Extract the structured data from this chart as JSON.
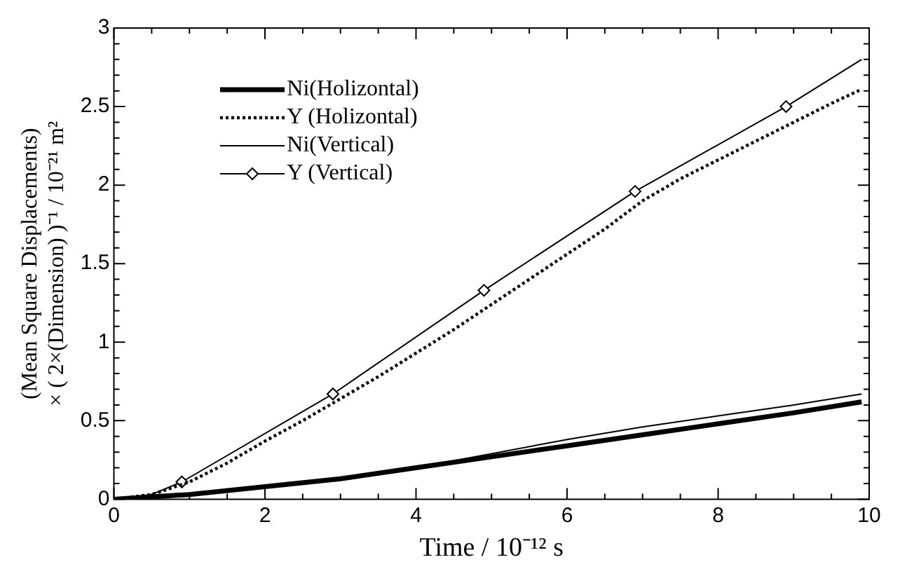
{
  "chart_data": {
    "type": "line",
    "xlabel": "Time / 10⁻¹² s",
    "ylabel": "(Mean Square Displacements)\n× ( 2×(Dimension) )⁻¹ / 10⁻²¹ m²",
    "xlim": [
      0,
      10
    ],
    "xticks": [
      0,
      2,
      4,
      6,
      8,
      10
    ],
    "ylim": [
      0,
      3
    ],
    "yticks": [
      0,
      0.5,
      1,
      1.5,
      2,
      2.5,
      3
    ],
    "grid": false,
    "legend": "top left",
    "series": [
      {
        "name": "Ni(Holizontal)",
        "color": "#000000",
        "line_style": "solid",
        "marker": "none",
        "x": [
          0,
          1,
          2,
          3,
          4,
          5,
          6,
          7,
          8,
          9,
          9.9
        ],
        "values": [
          0,
          0.03,
          0.08,
          0.13,
          0.2,
          0.27,
          0.34,
          0.41,
          0.48,
          0.55,
          0.62
        ]
      },
      {
        "name": "Y (Holizontal)",
        "color": "#000000",
        "line_style": "dotted",
        "marker": "none",
        "x": [
          0,
          0.5,
          1,
          1.5,
          2,
          2.5,
          3,
          3.5,
          4,
          4.5,
          5,
          5.5,
          6,
          6.5,
          7,
          7.5,
          8,
          8.5,
          9,
          9.5,
          9.9
        ],
        "values": [
          0,
          0.03,
          0.11,
          0.23,
          0.37,
          0.5,
          0.64,
          0.78,
          0.93,
          1.08,
          1.24,
          1.4,
          1.56,
          1.72,
          1.9,
          2.04,
          2.16,
          2.28,
          2.4,
          2.52,
          2.61
        ]
      },
      {
        "name": "Ni(Vertical)",
        "color": "#000000",
        "line_style": "solid",
        "marker": "none",
        "x": [
          0,
          1,
          2,
          3,
          4,
          5,
          6,
          7,
          8,
          9,
          9.9
        ],
        "values": [
          0,
          0.03,
          0.08,
          0.13,
          0.2,
          0.29,
          0.38,
          0.46,
          0.53,
          0.6,
          0.67
        ]
      },
      {
        "name": "Y (Vertical)",
        "color": "#000000",
        "line_style": "solid",
        "marker": "diamond",
        "x": [
          0,
          0.5,
          0.9,
          2.9,
          4.9,
          6.9,
          8.9,
          9.9
        ],
        "values": [
          0,
          0.03,
          0.11,
          0.67,
          1.33,
          1.96,
          2.5,
          2.8
        ]
      }
    ]
  }
}
